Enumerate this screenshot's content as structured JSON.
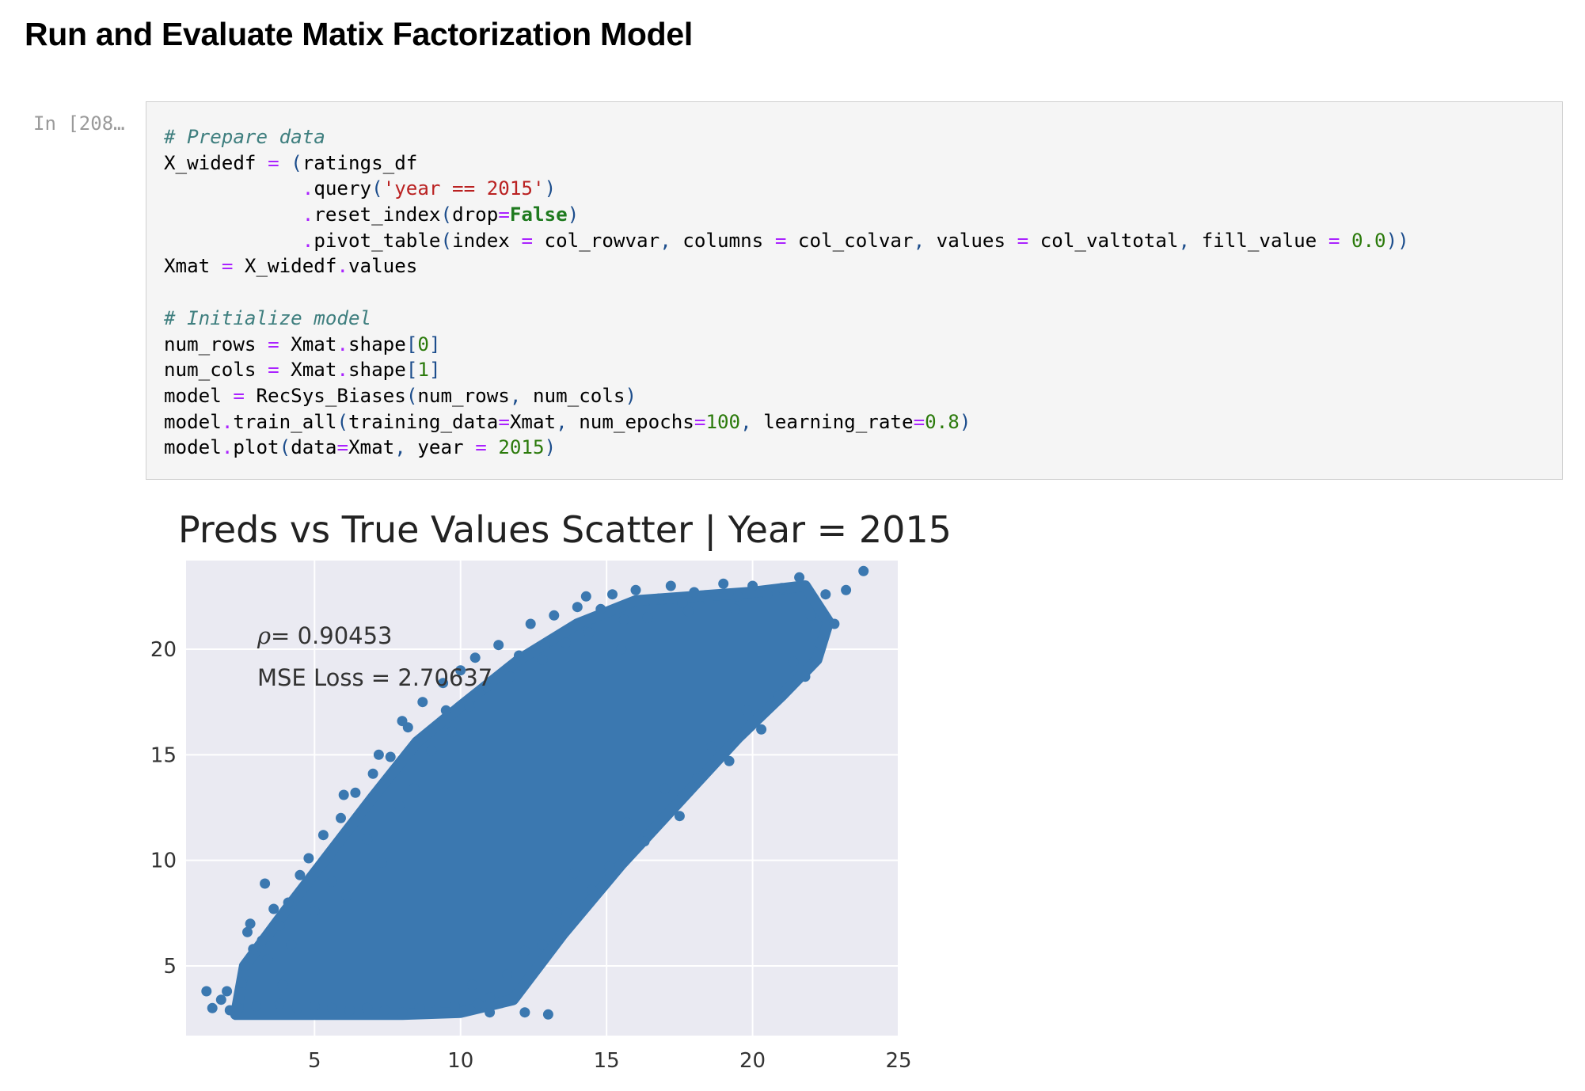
{
  "heading": "Run and Evaluate Matix Factorization Model",
  "cell": {
    "prompt": "In [208…",
    "lines": [
      [
        {
          "t": "# Prepare data",
          "c": "com"
        }
      ],
      [
        {
          "t": "X_widedf "
        },
        {
          "t": "=",
          "c": "op"
        },
        {
          "t": " "
        },
        {
          "t": "(",
          "c": "pun"
        },
        {
          "t": "ratings_df"
        }
      ],
      [
        {
          "t": "            "
        },
        {
          "t": ".",
          "c": "op"
        },
        {
          "t": "query"
        },
        {
          "t": "(",
          "c": "pun"
        },
        {
          "t": "'year == 2015'",
          "c": "str"
        },
        {
          "t": ")",
          "c": "pun"
        }
      ],
      [
        {
          "t": "            "
        },
        {
          "t": ".",
          "c": "op"
        },
        {
          "t": "reset_index"
        },
        {
          "t": "(",
          "c": "pun"
        },
        {
          "t": "drop"
        },
        {
          "t": "=",
          "c": "op"
        },
        {
          "t": "False",
          "c": "kw"
        },
        {
          "t": ")",
          "c": "pun"
        }
      ],
      [
        {
          "t": "            "
        },
        {
          "t": ".",
          "c": "op"
        },
        {
          "t": "pivot_table"
        },
        {
          "t": "(",
          "c": "pun"
        },
        {
          "t": "index "
        },
        {
          "t": "=",
          "c": "op"
        },
        {
          "t": " col_rowvar"
        },
        {
          "t": ",",
          "c": "pun"
        },
        {
          "t": " columns "
        },
        {
          "t": "=",
          "c": "op"
        },
        {
          "t": " col_colvar"
        },
        {
          "t": ",",
          "c": "pun"
        },
        {
          "t": " values "
        },
        {
          "t": "=",
          "c": "op"
        },
        {
          "t": " col_valtotal"
        },
        {
          "t": ",",
          "c": "pun"
        },
        {
          "t": " fill_value "
        },
        {
          "t": "=",
          "c": "op"
        },
        {
          "t": " "
        },
        {
          "t": "0.0",
          "c": "num"
        },
        {
          "t": "))",
          "c": "pun"
        }
      ],
      [
        {
          "t": "Xmat "
        },
        {
          "t": "=",
          "c": "op"
        },
        {
          "t": " X_widedf"
        },
        {
          "t": ".",
          "c": "op"
        },
        {
          "t": "values"
        }
      ],
      [
        {
          "t": ""
        }
      ],
      [
        {
          "t": "# Initialize model",
          "c": "com"
        }
      ],
      [
        {
          "t": "num_rows "
        },
        {
          "t": "=",
          "c": "op"
        },
        {
          "t": " Xmat"
        },
        {
          "t": ".",
          "c": "op"
        },
        {
          "t": "shape"
        },
        {
          "t": "[",
          "c": "pun"
        },
        {
          "t": "0",
          "c": "num"
        },
        {
          "t": "]",
          "c": "pun"
        }
      ],
      [
        {
          "t": "num_cols "
        },
        {
          "t": "=",
          "c": "op"
        },
        {
          "t": " Xmat"
        },
        {
          "t": ".",
          "c": "op"
        },
        {
          "t": "shape"
        },
        {
          "t": "[",
          "c": "pun"
        },
        {
          "t": "1",
          "c": "num"
        },
        {
          "t": "]",
          "c": "pun"
        }
      ],
      [
        {
          "t": "model "
        },
        {
          "t": "=",
          "c": "op"
        },
        {
          "t": " RecSys_Biases"
        },
        {
          "t": "(",
          "c": "pun"
        },
        {
          "t": "num_rows"
        },
        {
          "t": ",",
          "c": "pun"
        },
        {
          "t": " num_cols"
        },
        {
          "t": ")",
          "c": "pun"
        }
      ],
      [
        {
          "t": "model"
        },
        {
          "t": ".",
          "c": "op"
        },
        {
          "t": "train_all"
        },
        {
          "t": "(",
          "c": "pun"
        },
        {
          "t": "training_data"
        },
        {
          "t": "=",
          "c": "op"
        },
        {
          "t": "Xmat"
        },
        {
          "t": ",",
          "c": "pun"
        },
        {
          "t": " num_epochs"
        },
        {
          "t": "=",
          "c": "op"
        },
        {
          "t": "100",
          "c": "num"
        },
        {
          "t": ",",
          "c": "pun"
        },
        {
          "t": " learning_rate"
        },
        {
          "t": "=",
          "c": "op"
        },
        {
          "t": "0.8",
          "c": "num"
        },
        {
          "t": ")",
          "c": "pun"
        }
      ],
      [
        {
          "t": "model"
        },
        {
          "t": ".",
          "c": "op"
        },
        {
          "t": "plot"
        },
        {
          "t": "(",
          "c": "pun"
        },
        {
          "t": "data"
        },
        {
          "t": "=",
          "c": "op"
        },
        {
          "t": "Xmat"
        },
        {
          "t": ",",
          "c": "pun"
        },
        {
          "t": " year "
        },
        {
          "t": "=",
          "c": "op"
        },
        {
          "t": " "
        },
        {
          "t": "2015",
          "c": "num"
        },
        {
          "t": ")",
          "c": "pun"
        }
      ]
    ]
  },
  "chart_data": {
    "type": "scatter",
    "title": "Preds vs True Values Scatter | Year = 2015",
    "xlabel": "",
    "ylabel": "",
    "xlim": [
      0.6,
      25
    ],
    "ylim": [
      1.7,
      24.2
    ],
    "xticks": [
      "5",
      "10",
      "15",
      "20",
      "25"
    ],
    "yticks": [
      "5",
      "10",
      "15",
      "20"
    ],
    "grid": true,
    "marker_color": "#3b78b0",
    "background": "#eaeaf2",
    "annotations": [
      {
        "label": "ρ=",
        "value": "0.90453"
      },
      {
        "label": "MSE Loss = ",
        "value": "2.70637"
      }
    ],
    "points": [
      [
        1.3,
        3.8
      ],
      [
        1.5,
        3.0
      ],
      [
        1.8,
        3.4
      ],
      [
        2.0,
        3.8
      ],
      [
        2.1,
        2.9
      ],
      [
        2.4,
        3.0
      ],
      [
        2.5,
        4.2
      ],
      [
        2.6,
        5.0
      ],
      [
        2.7,
        6.6
      ],
      [
        2.8,
        7.0
      ],
      [
        2.9,
        5.8
      ],
      [
        3.0,
        3.1
      ],
      [
        3.2,
        6.2
      ],
      [
        3.3,
        8.9
      ],
      [
        3.4,
        5.3
      ],
      [
        3.6,
        7.7
      ],
      [
        3.8,
        6.9
      ],
      [
        3.9,
        4.1
      ],
      [
        4.1,
        8.0
      ],
      [
        4.2,
        6.0
      ],
      [
        4.5,
        9.3
      ],
      [
        4.8,
        10.1
      ],
      [
        5.0,
        7.6
      ],
      [
        5.3,
        11.2
      ],
      [
        5.6,
        9.0
      ],
      [
        5.9,
        12.0
      ],
      [
        6.1,
        8.3
      ],
      [
        6.4,
        13.2
      ],
      [
        6.8,
        11.0
      ],
      [
        7.0,
        14.1
      ],
      [
        7.3,
        9.9
      ],
      [
        7.6,
        14.9
      ],
      [
        7.9,
        12.6
      ],
      [
        8.2,
        16.3
      ],
      [
        8.4,
        13.4
      ],
      [
        8.7,
        17.5
      ],
      [
        9.0,
        15.2
      ],
      [
        9.4,
        18.4
      ],
      [
        9.7,
        16.1
      ],
      [
        10.0,
        19.0
      ],
      [
        10.3,
        17.3
      ],
      [
        10.5,
        19.6
      ],
      [
        10.9,
        18.2
      ],
      [
        11.3,
        20.2
      ],
      [
        11.7,
        18.7
      ],
      [
        12.0,
        19.7
      ],
      [
        12.4,
        21.2
      ],
      [
        12.8,
        19.5
      ],
      [
        13.2,
        21.6
      ],
      [
        13.6,
        20.3
      ],
      [
        14.0,
        22.0
      ],
      [
        14.4,
        20.8
      ],
      [
        14.8,
        21.9
      ],
      [
        15.2,
        22.6
      ],
      [
        15.6,
        21.4
      ],
      [
        16.0,
        22.8
      ],
      [
        16.4,
        21.5
      ],
      [
        16.8,
        22.4
      ],
      [
        17.2,
        23.0
      ],
      [
        17.6,
        22.2
      ],
      [
        18.0,
        22.7
      ],
      [
        18.5,
        22.3
      ],
      [
        19.0,
        23.1
      ],
      [
        19.5,
        22.5
      ],
      [
        20.0,
        23.0
      ],
      [
        20.5,
        22.6
      ],
      [
        21.0,
        22.9
      ],
      [
        21.6,
        23.4
      ],
      [
        22.0,
        21.6
      ],
      [
        22.5,
        22.6
      ],
      [
        22.8,
        21.2
      ],
      [
        23.2,
        22.8
      ],
      [
        23.8,
        23.7
      ],
      [
        22.3,
        20.3
      ],
      [
        21.8,
        18.7
      ],
      [
        21.4,
        19.4
      ],
      [
        20.9,
        17.8
      ],
      [
        20.3,
        16.2
      ],
      [
        19.8,
        17.1
      ],
      [
        19.2,
        14.7
      ],
      [
        18.6,
        15.4
      ],
      [
        18.1,
        13.9
      ],
      [
        17.5,
        12.1
      ],
      [
        17.0,
        13.4
      ],
      [
        16.3,
        10.9
      ],
      [
        15.7,
        11.8
      ],
      [
        15.1,
        9.7
      ],
      [
        14.5,
        8.6
      ],
      [
        13.9,
        9.4
      ],
      [
        13.3,
        7.5
      ],
      [
        12.8,
        6.0
      ],
      [
        12.2,
        5.7
      ],
      [
        11.6,
        4.6
      ],
      [
        11.0,
        3.5
      ],
      [
        10.4,
        4.1
      ],
      [
        9.8,
        3.1
      ],
      [
        9.2,
        2.9
      ],
      [
        8.6,
        3.0
      ],
      [
        8.0,
        2.8
      ],
      [
        7.4,
        2.9
      ],
      [
        6.8,
        3.0
      ],
      [
        6.2,
        2.9
      ],
      [
        5.6,
        3.0
      ],
      [
        5.0,
        3.1
      ],
      [
        4.4,
        3.0
      ],
      [
        3.8,
        3.2
      ],
      [
        13.0,
        2.7
      ],
      [
        12.2,
        2.8
      ],
      [
        11.0,
        2.8
      ],
      [
        10.6,
        3.2
      ],
      [
        16.6,
        22.3
      ],
      [
        17.8,
        21.8
      ],
      [
        15.5,
        20.0
      ],
      [
        19.4,
        21.9
      ],
      [
        12.9,
        20.2
      ],
      [
        9.5,
        17.1
      ],
      [
        8.0,
        16.6
      ],
      [
        7.2,
        15.0
      ],
      [
        6.0,
        13.1
      ],
      [
        14.3,
        22.5
      ]
    ],
    "band": {
      "lower": [
        [
          2.3,
          2.7
        ],
        [
          4.0,
          2.7
        ],
        [
          6.0,
          2.7
        ],
        [
          8.0,
          2.7
        ],
        [
          10.0,
          2.8
        ],
        [
          11.8,
          3.4
        ],
        [
          13.5,
          6.5
        ],
        [
          15.5,
          9.8
        ],
        [
          17.5,
          12.8
        ],
        [
          19.5,
          15.8
        ],
        [
          21.0,
          17.8
        ],
        [
          22.2,
          19.5
        ],
        [
          22.6,
          21.3
        ]
      ],
      "upper": [
        [
          22.6,
          21.3
        ],
        [
          21.8,
          23.0
        ],
        [
          20.0,
          22.7
        ],
        [
          18.0,
          22.5
        ],
        [
          16.0,
          22.3
        ],
        [
          14.0,
          21.2
        ],
        [
          12.0,
          19.5
        ],
        [
          10.0,
          17.3
        ],
        [
          8.5,
          15.6
        ],
        [
          7.0,
          13.0
        ],
        [
          5.5,
          10.3
        ],
        [
          4.0,
          7.6
        ],
        [
          2.6,
          5.0
        ],
        [
          2.3,
          2.7
        ]
      ]
    }
  }
}
